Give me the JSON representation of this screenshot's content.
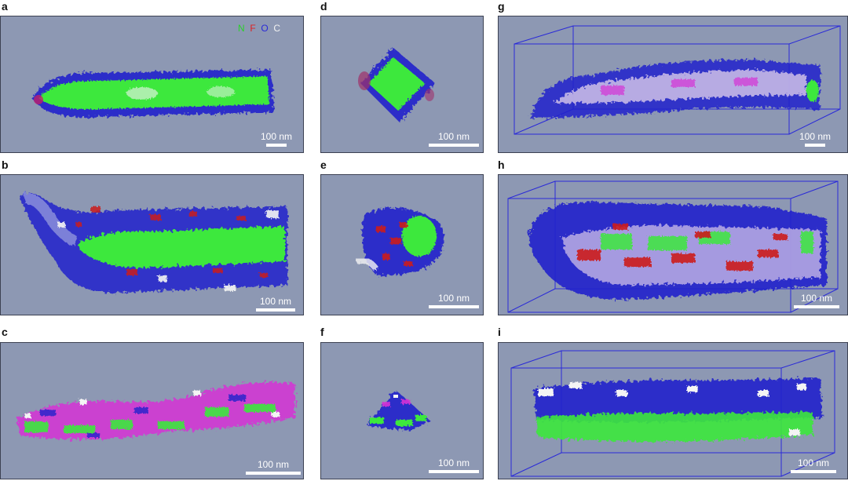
{
  "figure": {
    "panels": [
      {
        "label": "a",
        "scale_text": "100 nm"
      },
      {
        "label": "b",
        "scale_text": "100 nm"
      },
      {
        "label": "c",
        "scale_text": "100 nm"
      },
      {
        "label": "d",
        "scale_text": "100 nm"
      },
      {
        "label": "e",
        "scale_text": "100 nm"
      },
      {
        "label": "f",
        "scale_text": "100 nm"
      },
      {
        "label": "g",
        "scale_text": "100 nm"
      },
      {
        "label": "h",
        "scale_text": "100 nm"
      },
      {
        "label": "i",
        "scale_text": "100 nm"
      }
    ],
    "legend": {
      "items": [
        {
          "text": "N",
          "color": "#2bd02b"
        },
        {
          "text": "F",
          "color": "#e02020"
        },
        {
          "text": "O",
          "color": "#2a2ad8"
        },
        {
          "text": "C",
          "color": "#f2f2f2"
        }
      ]
    },
    "colors": {
      "panel_bg": "#8d98b3",
      "green": "#3ee83e",
      "blue": "#2222cc",
      "red": "#cc1f1f",
      "white": "#f4f4f4",
      "magenta": "#d630d6",
      "box": "#2a2ad8"
    }
  }
}
